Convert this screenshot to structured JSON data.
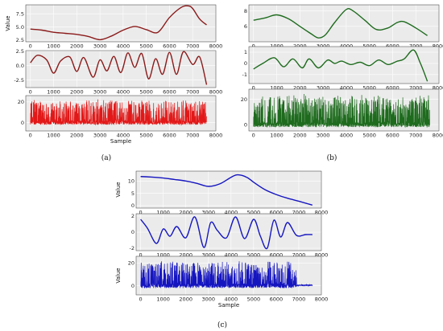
{
  "captions": [
    "(a)",
    "(b)",
    "(c)"
  ],
  "chart_data": [
    {
      "type": "line",
      "panel": "a",
      "color": "#8b1a1a",
      "subplots": [
        {
          "ylabel": "Value",
          "xlim": [
            -200,
            8000
          ],
          "ylim": [
            2.2,
            9.2
          ],
          "yticks": [
            2.5,
            5.0,
            7.5
          ],
          "ytick_labels": [
            "2.5",
            "5.0",
            "7.5"
          ],
          "x": [
            0,
            500,
            1000,
            1500,
            2000,
            2500,
            3000,
            3500,
            4000,
            4500,
            5000,
            5500,
            6000,
            6500,
            6800,
            7000,
            7300,
            7600
          ],
          "y": [
            4.6,
            4.4,
            4.0,
            3.8,
            3.6,
            3.2,
            2.6,
            3.3,
            4.4,
            5.1,
            4.5,
            4.0,
            6.8,
            8.7,
            9.0,
            8.5,
            6.5,
            5.4
          ]
        },
        {
          "ylabel": "",
          "xlim": [
            -200,
            8000
          ],
          "ylim": [
            -3.8,
            2.6
          ],
          "yticks": [
            -2.5,
            0.0,
            2.5
          ],
          "ytick_labels": [
            "-2.5",
            "0.0",
            "2.5"
          ],
          "x": [
            0,
            300,
            700,
            1000,
            1300,
            1700,
            2000,
            2300,
            2700,
            3000,
            3300,
            3600,
            3900,
            4200,
            4500,
            4800,
            5100,
            5400,
            5700,
            6000,
            6300,
            6600,
            7000,
            7300,
            7600
          ],
          "y": [
            0.5,
            1.8,
            1.0,
            -1.3,
            0.8,
            1.5,
            -1.0,
            1.4,
            -2.0,
            1.0,
            -0.9,
            1.6,
            -1.2,
            2.2,
            -0.3,
            2.1,
            -2.3,
            1.2,
            -1.5,
            2.3,
            -1.5,
            2.4,
            0.2,
            1.5,
            -3.3
          ]
        },
        {
          "ylabel": "",
          "xlim": [
            -200,
            8000
          ],
          "ylim": [
            -8,
            26
          ],
          "yticks": [
            0,
            20
          ],
          "ytick_labels": [
            "0",
            "20"
          ],
          "xlabel": "Sample",
          "noisy": true,
          "x": [],
          "y": []
        }
      ],
      "xticks": [
        0,
        1000,
        2000,
        3000,
        4000,
        5000,
        6000,
        7000,
        8000
      ]
    },
    {
      "type": "line",
      "panel": "b",
      "color": "#1e6b1e",
      "subplots": [
        {
          "ylabel": "",
          "xlim": [
            -200,
            8000
          ],
          "ylim": [
            4.0,
            8.8
          ],
          "yticks": [
            6,
            8
          ],
          "ytick_labels": [
            "6",
            "8"
          ],
          "x": [
            0,
            500,
            1000,
            1500,
            2000,
            2500,
            2800,
            3100,
            3500,
            4000,
            4300,
            4800,
            5300,
            5800,
            6200,
            6500,
            7000,
            7500
          ],
          "y": [
            6.8,
            7.1,
            7.5,
            7.0,
            6.0,
            5.0,
            4.5,
            4.9,
            6.5,
            8.2,
            8.0,
            6.8,
            5.6,
            5.8,
            6.5,
            6.6,
            5.8,
            4.8
          ]
        },
        {
          "ylabel": "",
          "xlim": [
            -200,
            8000
          ],
          "ylim": [
            -1.8,
            1.5
          ],
          "yticks": [
            -1,
            0,
            1
          ],
          "ytick_labels": [
            "-1",
            "0",
            "1"
          ],
          "x": [
            0,
            400,
            900,
            1300,
            1700,
            2100,
            2400,
            2800,
            3200,
            3500,
            3800,
            4200,
            4600,
            5000,
            5400,
            5800,
            6200,
            6500,
            6900,
            7200,
            7500
          ],
          "y": [
            -0.5,
            0.0,
            0.5,
            -0.3,
            0.4,
            -0.4,
            0.4,
            -0.4,
            0.3,
            0.0,
            0.2,
            -0.1,
            0.1,
            -0.2,
            0.3,
            -0.1,
            0.2,
            0.4,
            1.2,
            0.0,
            -1.6
          ]
        },
        {
          "ylabel": "",
          "xlim": [
            -200,
            8000
          ],
          "ylim": [
            -5,
            28
          ],
          "yticks": [
            0,
            20
          ],
          "ytick_labels": [
            "0",
            "20"
          ],
          "noisy": true,
          "x": [],
          "y": []
        }
      ],
      "xticks": [
        0,
        1000,
        2000,
        3000,
        4000,
        5000,
        6000,
        7000,
        8000
      ]
    },
    {
      "type": "line",
      "panel": "c",
      "color": "#1515c0",
      "subplots": [
        {
          "ylabel": "Value",
          "xlim": [
            -200,
            8000
          ],
          "ylim": [
            -1,
            14
          ],
          "yticks": [
            0,
            5,
            10
          ],
          "ytick_labels": [
            "0",
            "5",
            "10"
          ],
          "x": [
            0,
            500,
            1000,
            1500,
            2000,
            2500,
            3000,
            3500,
            4000,
            4300,
            4700,
            5000,
            5500,
            6000,
            6500,
            7000,
            7600
          ],
          "y": [
            11.8,
            11.6,
            11.2,
            10.6,
            10.0,
            9.0,
            7.8,
            8.8,
            11.5,
            12.5,
            11.5,
            9.5,
            6.5,
            4.5,
            3.0,
            1.8,
            0.2
          ]
        },
        {
          "ylabel": "",
          "xlim": [
            -200,
            8000
          ],
          "ylim": [
            -2.3,
            2.3
          ],
          "yticks": [
            -2,
            0,
            2
          ],
          "ytick_labels": [
            "-2",
            "0",
            "2"
          ],
          "x": [
            0,
            300,
            700,
            1000,
            1300,
            1600,
            2000,
            2400,
            2800,
            3100,
            3400,
            3800,
            4200,
            4600,
            5000,
            5300,
            5600,
            5900,
            6200,
            6500,
            6900,
            7300,
            7600
          ],
          "y": [
            1.6,
            0.5,
            -1.4,
            0.4,
            -0.5,
            0.7,
            -0.7,
            1.9,
            -1.9,
            1.2,
            0.2,
            -0.7,
            1.9,
            -0.8,
            1.6,
            -0.5,
            -2.0,
            1.5,
            -0.6,
            1.2,
            -0.4,
            -0.3,
            -0.3
          ]
        },
        {
          "ylabel": "Value",
          "xlim": [
            -200,
            8000
          ],
          "ylim": [
            -8,
            26
          ],
          "yticks": [
            0,
            20
          ],
          "ytick_labels": [
            "0",
            "20"
          ],
          "xlabel": "Sample",
          "noisy": true,
          "x": [],
          "y": []
        }
      ],
      "xticks": [
        0,
        1000,
        2000,
        3000,
        4000,
        5000,
        6000,
        7000,
        8000
      ]
    }
  ]
}
